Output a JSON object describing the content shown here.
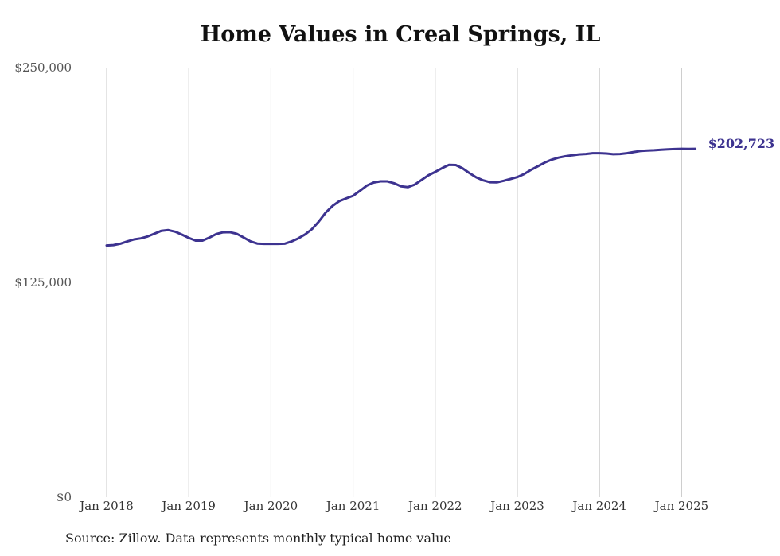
{
  "chart_data": {
    "type": "line",
    "title": "Home Values in Creal Springs, IL",
    "xlabel": "",
    "ylabel": "",
    "ylim": [
      0,
      250000
    ],
    "y_ticks": [
      "$250,000",
      "$125,000",
      "$0"
    ],
    "y_tick_values": [
      250000,
      125000,
      0
    ],
    "x_ticks": [
      "Jan 2018",
      "Jan 2019",
      "Jan 2020",
      "Jan 2021",
      "Jan 2022",
      "Jan 2023",
      "Jan 2024",
      "Jan 2025"
    ],
    "grid": "vertical",
    "legend": "none",
    "end_label": "$202,723",
    "line_color": "#3d3390",
    "series": [
      {
        "x": [
          "2018-01",
          "2018-02",
          "2018-03",
          "2018-04",
          "2018-05",
          "2018-06",
          "2018-07",
          "2018-08",
          "2018-09",
          "2018-10",
          "2018-11",
          "2018-12",
          "2019-01",
          "2019-02",
          "2019-03",
          "2019-04",
          "2019-05",
          "2019-06",
          "2019-07",
          "2019-08",
          "2019-09",
          "2019-10",
          "2019-11",
          "2019-12",
          "2020-01",
          "2020-02",
          "2020-03",
          "2020-04",
          "2020-05",
          "2020-06",
          "2020-07",
          "2020-08",
          "2020-09",
          "2020-10",
          "2020-11",
          "2020-12",
          "2021-01",
          "2021-02",
          "2021-03",
          "2021-04",
          "2021-05",
          "2021-06",
          "2021-07",
          "2021-08",
          "2021-09",
          "2021-10",
          "2021-11",
          "2021-12",
          "2022-01",
          "2022-02",
          "2022-03",
          "2022-04",
          "2022-05",
          "2022-06",
          "2022-07",
          "2022-08",
          "2022-09",
          "2022-10",
          "2022-11",
          "2022-12",
          "2023-01",
          "2023-02",
          "2023-03",
          "2023-04",
          "2023-05",
          "2023-06",
          "2023-07",
          "2023-08",
          "2023-09",
          "2023-10",
          "2023-11",
          "2023-12",
          "2024-01",
          "2024-02",
          "2024-03",
          "2024-04",
          "2024-05",
          "2024-06",
          "2024-07",
          "2024-08",
          "2024-09",
          "2024-10",
          "2024-11",
          "2024-12",
          "2025-01",
          "2025-02",
          "2025-03"
        ],
        "y": [
          146500,
          146700,
          147500,
          148800,
          150000,
          150600,
          151700,
          153400,
          155000,
          155400,
          154500,
          152800,
          150900,
          149300,
          149300,
          151000,
          153100,
          154100,
          154200,
          153300,
          151100,
          148900,
          147600,
          147400,
          147400,
          147400,
          147500,
          148800,
          150600,
          152900,
          156000,
          160400,
          165600,
          169500,
          172300,
          173900,
          175400,
          178300,
          181300,
          183100,
          183800,
          183800,
          182700,
          180900,
          180400,
          181900,
          184600,
          187300,
          189300,
          191500,
          193400,
          193300,
          191400,
          188600,
          186100,
          184400,
          183300,
          183200,
          184100,
          185200,
          186300,
          188100,
          190500,
          192600,
          194700,
          196400,
          197600,
          198400,
          199000,
          199500,
          199700,
          200200,
          200200,
          200000,
          199600,
          199700,
          200200,
          200900,
          201500,
          201700,
          201900,
          202200,
          202400,
          202600,
          202723,
          202700,
          202723
        ]
      }
    ]
  },
  "source_note": "Source: Zillow. Data represents monthly typical home value"
}
